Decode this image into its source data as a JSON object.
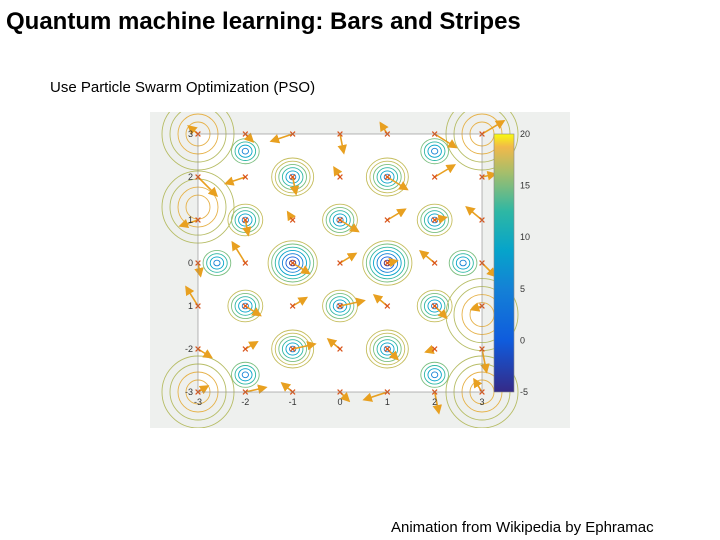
{
  "slide": {
    "title": "Quantum machine learning: Bars and Stripes",
    "subtitle": "Use Particle Swarm Optimization (PSO)",
    "credit": "Animation from Wikipedia by Ephramac"
  },
  "figure": {
    "x_ticks": [
      "-3",
      "-2",
      "-1",
      "0",
      "1",
      "2",
      "3"
    ],
    "y_ticks": [
      "3",
      "2",
      "1",
      "0",
      "1",
      "-2",
      "-3"
    ],
    "colorbar_ticks": [
      "20",
      "15",
      "10",
      "5",
      "0",
      "-5"
    ],
    "colors": {
      "particle": "#d9541a",
      "velocity_arrow": "#e8a020",
      "background": "#eef0ee"
    }
  }
}
